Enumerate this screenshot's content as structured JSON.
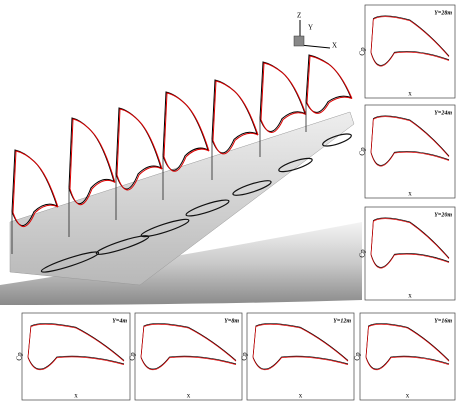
{
  "triad": {
    "z": "Z",
    "y": "Y",
    "x": "X"
  },
  "panels": [
    {
      "label": "Y=28m",
      "x_label": "x",
      "y_label": "Cp"
    },
    {
      "label": "Y=24m",
      "x_label": "x",
      "y_label": "Cp"
    },
    {
      "label": "Y=20m",
      "x_label": "x",
      "y_label": "Cp"
    },
    {
      "label": "Y=4m",
      "x_label": "x",
      "y_label": "Cp"
    },
    {
      "label": "Y=8m",
      "x_label": "x",
      "y_label": "Cp"
    },
    {
      "label": "Y=12m",
      "x_label": "x",
      "y_label": "Cp"
    },
    {
      "label": "Y=16m",
      "x_label": "x",
      "y_label": "Cp"
    }
  ]
}
